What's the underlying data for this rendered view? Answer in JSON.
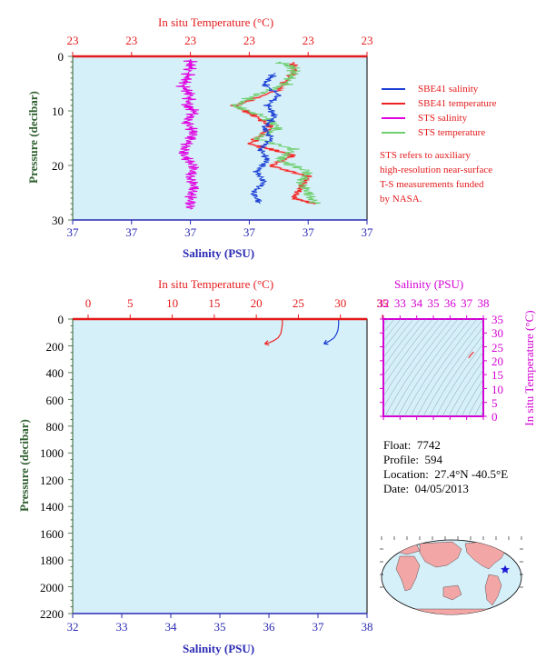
{
  "colors": {
    "panel_bg": "#d6f0fa",
    "temperature_axis": "#e41a1c",
    "salinity_axis": "#2a2ab4",
    "ts_axis": "#d400d4",
    "pressure_axis": "#2f5f2f",
    "sbe_salinity": "#1a3fd4",
    "sbe_temperature": "#ef2222",
    "sts_salinity": "#e000e0",
    "sts_temperature": "#6fcf6f",
    "sbe_temperature_band": "#f4a0a0"
  },
  "top_chart": {
    "temp_title": "In situ Temperature (°C)",
    "temp_ticks": [
      "23",
      "23",
      "23",
      "23",
      "23",
      "23"
    ],
    "sal_title": "Salinity (PSU)",
    "sal_ticks": [
      "37",
      "37",
      "37",
      "37",
      "37",
      "37"
    ],
    "pressure_title": "Pressure (decibar)",
    "pressure_ticks": [
      "0",
      "10",
      "20",
      "30"
    ]
  },
  "legend": {
    "items": [
      {
        "label": "SBE41 salinity",
        "color": "#1a3fd4"
      },
      {
        "label": "SBE41 temperature",
        "color": "#ef2222"
      },
      {
        "label": "STS salinity",
        "color": "#e000e0"
      },
      {
        "label": "STS temperature",
        "color": "#6fcf6f"
      }
    ]
  },
  "note": {
    "lines": [
      "STS refers to auxiliary",
      "high-resolution near-surface",
      "T-S measurements funded",
      "by NASA."
    ]
  },
  "bottom_chart": {
    "temp_title": "In situ Temperature (°C)",
    "temp_ticks": [
      "0",
      "5",
      "10",
      "15",
      "20",
      "25",
      "30",
      "35"
    ],
    "sal_title": "Salinity (PSU)",
    "sal_ticks": [
      "32",
      "33",
      "34",
      "35",
      "36",
      "37",
      "38"
    ],
    "pressure_title": "Pressure (decibar)",
    "pressure_ticks": [
      "0",
      "200",
      "400",
      "600",
      "800",
      "1000",
      "1200",
      "1400",
      "1600",
      "1800",
      "2000",
      "2200"
    ]
  },
  "ts_diagram": {
    "sal_title": "Salinity (PSU)",
    "sal_ticks": [
      "32",
      "33",
      "34",
      "35",
      "36",
      "37",
      "38"
    ],
    "temp_title": "In situ Temperature (°C)",
    "temp_ticks": [
      "0",
      "5",
      "10",
      "15",
      "20",
      "25",
      "30",
      "35"
    ]
  },
  "info": {
    "float_label": "Float:",
    "float_value": "7742",
    "profile_label": "Profile:",
    "profile_value": "594",
    "location_label": "Location:",
    "location_value": "27.4°N  -40.5°E",
    "date_label": "Date:",
    "date_value": "04/05/2013"
  },
  "chart_data": [
    {
      "type": "line",
      "title": "",
      "xlabel_top": "In situ Temperature (°C)",
      "xlabel_bottom": "Salinity (PSU)",
      "ylabel": "Pressure (decibar)",
      "ylim": [
        30,
        0
      ],
      "y_reversed": true,
      "series": [
        {
          "name": "SBE41 salinity",
          "axis": "salinity",
          "points": [
            [
              37.15,
              3
            ],
            [
              37.12,
              5
            ],
            [
              37.16,
              7
            ],
            [
              37.13,
              9
            ],
            [
              37.15,
              11
            ],
            [
              37.12,
              13
            ],
            [
              37.14,
              15
            ],
            [
              37.11,
              17
            ],
            [
              37.13,
              19
            ],
            [
              37.1,
              21
            ],
            [
              37.12,
              23
            ],
            [
              37.09,
              25
            ],
            [
              37.11,
              27
            ]
          ]
        },
        {
          "name": "SBE41 temperature",
          "axis": "temperature",
          "points": [
            [
              23.1,
              1
            ],
            [
              23.1,
              3
            ],
            [
              23.08,
              6
            ],
            [
              23.02,
              9
            ],
            [
              23.05,
              11
            ],
            [
              23.07,
              13
            ],
            [
              23.04,
              16
            ],
            [
              23.1,
              18
            ],
            [
              23.07,
              20
            ],
            [
              23.12,
              22
            ],
            [
              23.11,
              24
            ],
            [
              23.1,
              26
            ],
            [
              23.13,
              27
            ]
          ]
        },
        {
          "name": "STS salinity",
          "axis": "salinity",
          "points": [
            [
              36.92,
              0.5
            ],
            [
              36.92,
              2
            ],
            [
              36.91,
              4
            ],
            [
              36.9,
              5.5
            ],
            [
              36.92,
              7
            ],
            [
              36.91,
              9
            ],
            [
              36.93,
              10
            ],
            [
              36.91,
              12
            ],
            [
              36.93,
              14
            ],
            [
              36.91,
              16
            ],
            [
              36.9,
              18
            ],
            [
              36.93,
              20
            ],
            [
              36.92,
              22
            ],
            [
              36.93,
              24
            ],
            [
              36.92,
              26
            ],
            [
              36.92,
              28
            ]
          ]
        },
        {
          "name": "STS temperature",
          "axis": "temperature",
          "points": [
            [
              23.08,
              1
            ],
            [
              23.1,
              2
            ],
            [
              23.1,
              3
            ],
            [
              23.09,
              5
            ],
            [
              23.05,
              7
            ],
            [
              23.02,
              9
            ],
            [
              23.06,
              11
            ],
            [
              23.08,
              13
            ],
            [
              23.05,
              15
            ],
            [
              23.1,
              17
            ],
            [
              23.08,
              19
            ],
            [
              23.12,
              21
            ],
            [
              23.11,
              23
            ],
            [
              23.12,
              25
            ],
            [
              23.13,
              27
            ]
          ]
        }
      ]
    },
    {
      "type": "line",
      "title": "",
      "xlabel_top": "In situ Temperature (°C)",
      "xlabel_bottom": "Salinity (PSU)",
      "ylabel": "Pressure (decibar)",
      "temp_range": [
        0,
        35
      ],
      "sal_range": [
        32,
        38
      ],
      "ylim": [
        2200,
        0
      ],
      "y_reversed": true,
      "series": [
        {
          "name": "SBE41 temperature",
          "axis": "temperature",
          "points": [
            [
              23.1,
              0
            ],
            [
              23.1,
              40
            ],
            [
              23.0,
              80
            ],
            [
              22.9,
              110
            ],
            [
              22.6,
              140
            ],
            [
              22.1,
              160
            ],
            [
              21.6,
              175
            ],
            [
              21.0,
              185
            ]
          ]
        },
        {
          "name": "SBE41 salinity",
          "axis": "salinity",
          "points": [
            [
              37.42,
              0
            ],
            [
              37.42,
              40
            ],
            [
              37.41,
              80
            ],
            [
              37.38,
              110
            ],
            [
              37.33,
              140
            ],
            [
              37.25,
              160
            ],
            [
              37.18,
              175
            ],
            [
              37.12,
              185
            ]
          ]
        }
      ]
    },
    {
      "type": "scatter",
      "title": "",
      "xlabel": "Salinity (PSU)",
      "ylabel": "In situ Temperature (°C)",
      "xlim": [
        32,
        38
      ],
      "ylim": [
        0,
        35
      ],
      "series": [
        {
          "name": "T-S",
          "points": [
            [
              37.12,
              21.0
            ],
            [
              37.25,
              22.1
            ],
            [
              37.33,
              22.6
            ],
            [
              37.38,
              22.9
            ],
            [
              37.42,
              23.1
            ]
          ]
        }
      ]
    }
  ]
}
